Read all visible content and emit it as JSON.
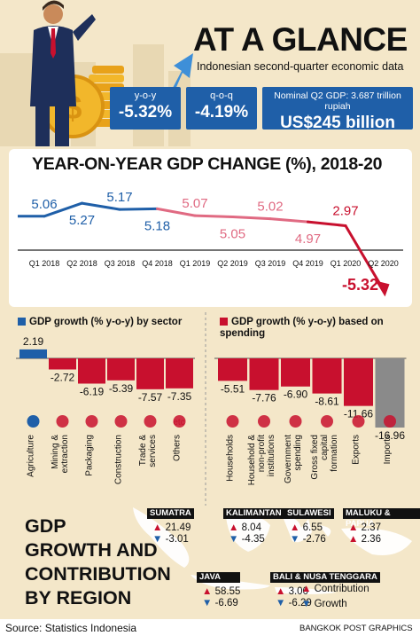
{
  "header": {
    "headline": "AT A GLANCE",
    "subhead": "Indonesian second-quarter economic data",
    "kpis": [
      {
        "label": "y-o-y",
        "value": "-5.32%"
      },
      {
        "label": "q-o-q",
        "value": "-4.19%"
      },
      {
        "label": "Nominal Q2 GDP: 3.687 trillion rupiah",
        "value": "US$245 billion"
      }
    ]
  },
  "chart_data": [
    {
      "type": "line",
      "title": "YEAR-ON-YEAR GDP CHANGE (%), 2018-20",
      "categories": [
        "Q1 2018",
        "Q2 2018",
        "Q3 2018",
        "Q4 2018",
        "Q1 2019",
        "Q2 2019",
        "Q3 2019",
        "Q4 2019",
        "Q1 2020",
        "Q2 2020"
      ],
      "values": [
        5.06,
        5.27,
        5.17,
        5.18,
        5.07,
        5.05,
        5.02,
        4.97,
        2.97,
        -5.32
      ],
      "labels": [
        "5.06",
        "5.27",
        "5.17",
        "5.18",
        "5.07",
        "5.05",
        "5.02",
        "4.97",
        "2.97",
        "-5.32"
      ],
      "colors": {
        "2018": "#1f5fa8",
        "2019": "#e06a82",
        "2020": "#c8102e"
      }
    },
    {
      "type": "bar",
      "title": "GDP growth (% y-o-y) by sector",
      "categories": [
        "Agriculture",
        "Mining & extraction",
        "Packaging",
        "Construction",
        "Trade & services",
        "Others"
      ],
      "values": [
        2.19,
        -2.72,
        -6.19,
        -5.39,
        -7.57,
        -7.35
      ],
      "labels": [
        "2.19",
        "-2.72",
        "-6.19",
        "-5.39",
        "-7.57",
        "-7.35"
      ],
      "icon_extra": "etc",
      "colors": {
        "positive": "#1f5fa8",
        "negative": "#c8102e"
      }
    },
    {
      "type": "bar",
      "title": "GDP growth (% y-o-y) based on spending",
      "categories": [
        "Households",
        "Household & non-profit institutions",
        "Government spending",
        "Gross fixed capital formation",
        "Exports",
        "Imports"
      ],
      "values": [
        -5.51,
        -7.76,
        -6.9,
        -8.61,
        -11.66,
        -16.96
      ],
      "labels": [
        "-5.51",
        "-7.76",
        "-6.90",
        "-8.61",
        "-11.66",
        "-16.96"
      ],
      "colors": {
        "negative": "#c8102e",
        "imports": "#8a8a8a"
      }
    },
    {
      "type": "table",
      "title": "GDP GROWTH AND CONTRIBUTION BY REGION",
      "legend": [
        "Contribution",
        "Growth"
      ],
      "regions": [
        {
          "name": "SUMATRA",
          "contribution": "21.49",
          "growth": "-3.01"
        },
        {
          "name": "KALIMANTAN",
          "contribution": "8.04",
          "growth": "-4.35"
        },
        {
          "name": "SULAWESI",
          "contribution": "6.55",
          "growth": "-2.76"
        },
        {
          "name": "MALUKU & PAPUA",
          "contribution": "2.37",
          "growth": "2.36"
        },
        {
          "name": "JAVA",
          "contribution": "58.55",
          "growth": "-6.69"
        },
        {
          "name": "BALI & NUSA TENGGARA",
          "contribution": "3.00",
          "growth": "-6.29"
        }
      ]
    }
  ],
  "footer": {
    "source": "Source: Statistics Indonesia",
    "credit": "BANGKOK POST GRAPHICS"
  }
}
